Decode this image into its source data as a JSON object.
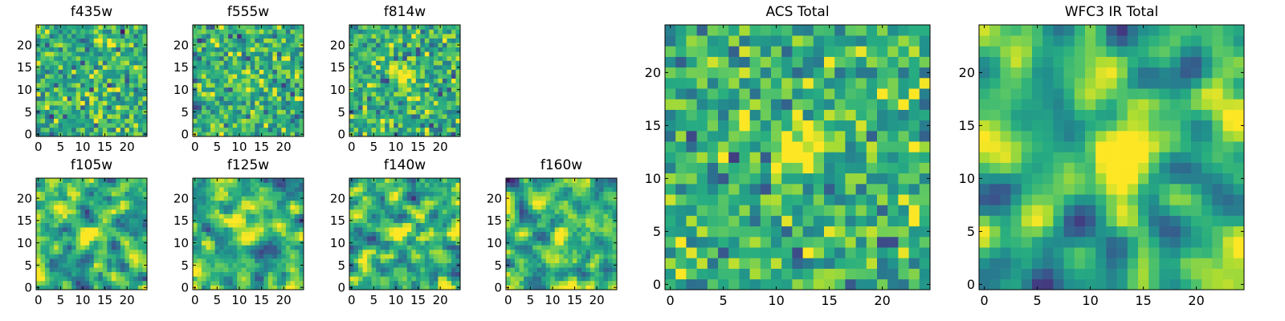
{
  "chart_data": [
    {
      "type": "heatmap",
      "id": "f435w",
      "title": "f435w",
      "xlabel": "",
      "ylabel": "",
      "xlim": [
        -0.5,
        24.5
      ],
      "ylim": [
        -0.5,
        24.5
      ],
      "xticks": [
        0,
        5,
        10,
        15,
        20
      ],
      "yticks": [
        0,
        5,
        10,
        15,
        20
      ],
      "colormap": "viridis",
      "feature": {
        "x": 12,
        "y": 12,
        "amp": 0.0
      },
      "seed": 11,
      "smooth": 0
    },
    {
      "type": "heatmap",
      "id": "f555w",
      "title": "f555w",
      "xlabel": "",
      "ylabel": "",
      "xlim": [
        -0.5,
        24.5
      ],
      "ylim": [
        -0.5,
        24.5
      ],
      "xticks": [
        0,
        5,
        10,
        15,
        20
      ],
      "yticks": [
        0,
        5,
        10,
        15,
        20
      ],
      "colormap": "viridis",
      "feature": {
        "x": 12,
        "y": 12,
        "amp": 0.1
      },
      "seed": 23,
      "smooth": 0
    },
    {
      "type": "heatmap",
      "id": "f814w",
      "title": "f814w",
      "xlabel": "",
      "ylabel": "",
      "xlim": [
        -0.5,
        24.5
      ],
      "ylim": [
        -0.5,
        24.5
      ],
      "xticks": [
        0,
        5,
        10,
        15,
        20
      ],
      "yticks": [
        0,
        5,
        10,
        15,
        20
      ],
      "colormap": "viridis",
      "feature": {
        "x": 12,
        "y": 13,
        "amp": 0.5
      },
      "seed": 37,
      "smooth": 0
    },
    {
      "type": "heatmap",
      "id": "f105w",
      "title": "f105w",
      "xlabel": "",
      "ylabel": "",
      "xlim": [
        -0.5,
        24.5
      ],
      "ylim": [
        -0.5,
        24.5
      ],
      "xticks": [
        0,
        5,
        10,
        15,
        20
      ],
      "yticks": [
        0,
        5,
        10,
        15,
        20
      ],
      "colormap": "viridis",
      "feature": {
        "x": 11,
        "y": 12,
        "amp": 0.6
      },
      "seed": 41,
      "smooth": 1
    },
    {
      "type": "heatmap",
      "id": "f125w",
      "title": "f125w",
      "xlabel": "",
      "ylabel": "",
      "xlim": [
        -0.5,
        24.5
      ],
      "ylim": [
        -0.5,
        24.5
      ],
      "xticks": [
        0,
        5,
        10,
        15,
        20
      ],
      "yticks": [
        0,
        5,
        10,
        15,
        20
      ],
      "colormap": "viridis",
      "feature": {
        "x": 12,
        "y": 12,
        "amp": 0.6
      },
      "seed": 53,
      "smooth": 1
    },
    {
      "type": "heatmap",
      "id": "f140w",
      "title": "f140w",
      "xlabel": "",
      "ylabel": "",
      "xlim": [
        -0.5,
        24.5
      ],
      "ylim": [
        -0.5,
        24.5
      ],
      "xticks": [
        0,
        5,
        10,
        15,
        20
      ],
      "yticks": [
        0,
        5,
        10,
        15,
        20
      ],
      "colormap": "viridis",
      "feature": {
        "x": 11,
        "y": 12,
        "amp": 0.5
      },
      "seed": 67,
      "smooth": 1
    },
    {
      "type": "heatmap",
      "id": "f160w",
      "title": "f160w",
      "xlabel": "",
      "ylabel": "",
      "xlim": [
        -0.5,
        24.5
      ],
      "ylim": [
        -0.5,
        24.5
      ],
      "xticks": [
        0,
        5,
        10,
        15,
        20
      ],
      "yticks": [
        0,
        5,
        10,
        15,
        20
      ],
      "colormap": "viridis",
      "feature": {
        "x": 12,
        "y": 12,
        "amp": 0.6
      },
      "seed": 79,
      "smooth": 1
    },
    {
      "type": "heatmap",
      "id": "acs_total",
      "title": "ACS Total",
      "xlabel": "",
      "ylabel": "",
      "xlim": [
        -0.5,
        24.5
      ],
      "ylim": [
        -0.5,
        24.5
      ],
      "xticks": [
        0,
        5,
        10,
        15,
        20
      ],
      "yticks": [
        0,
        5,
        10,
        15,
        20
      ],
      "colormap": "viridis",
      "feature": {
        "x": 12,
        "y": 13,
        "amp": 0.7
      },
      "seed": 97,
      "smooth": 0
    },
    {
      "type": "heatmap",
      "id": "wfc3_ir_total",
      "title": "WFC3 IR Total",
      "xlabel": "",
      "ylabel": "",
      "xlim": [
        -0.5,
        24.5
      ],
      "ylim": [
        -0.5,
        24.5
      ],
      "xticks": [
        0,
        5,
        10,
        15,
        20
      ],
      "yticks": [
        0,
        5,
        10,
        15,
        20
      ],
      "colormap": "viridis",
      "feature": {
        "x": 12,
        "y": 12,
        "amp": 0.9
      },
      "seed": 113,
      "smooth": 2
    }
  ],
  "colors": {
    "viridis_low": "#440154",
    "viridis_mid": "#21918c",
    "viridis_high": "#fde725"
  }
}
